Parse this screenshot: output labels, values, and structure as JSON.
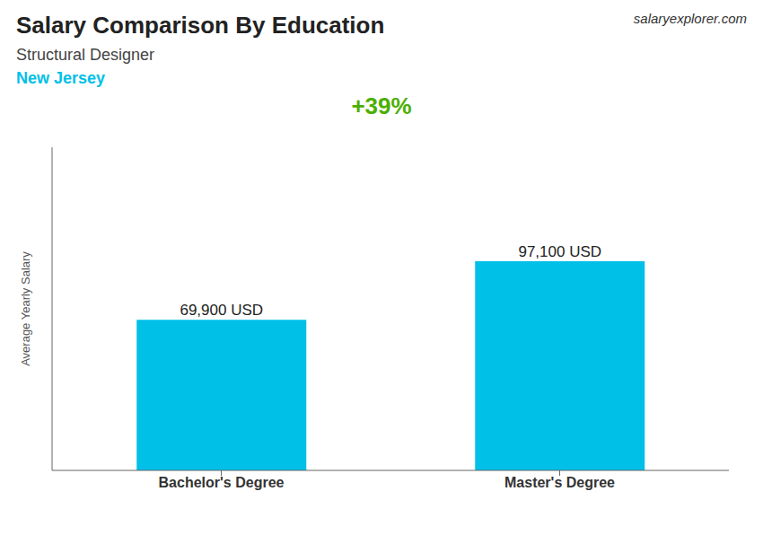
{
  "chart_data": {
    "type": "bar",
    "title": "Salary Comparison By Education",
    "subtitle": "Structural Designer",
    "annotations": [
      "New Jersey",
      "+39%",
      "salaryexplorer.com"
    ],
    "ylabel": "Average Yearly Salary",
    "categories": [
      "Bachelor's Degree",
      "Master's Degree"
    ],
    "values": [
      69900,
      97100
    ],
    "value_labels": [
      "69,900 USD",
      "97,100 USD"
    ],
    "data_labels": true,
    "color": "#00c0e8",
    "ylim": [
      0,
      150000
    ],
    "tick_labels": "x",
    "grid": false
  }
}
